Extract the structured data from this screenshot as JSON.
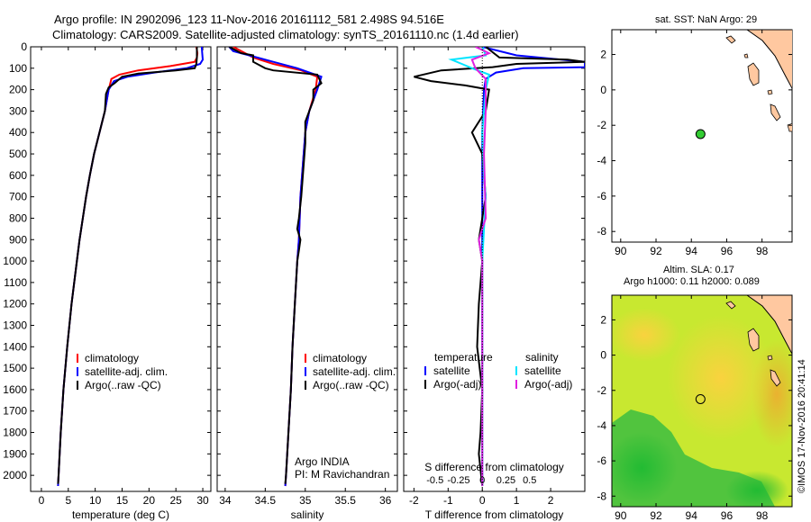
{
  "header": {
    "line1": "Argo profile: IN 2902096_123 11-Nov-2016 20161112_581 2.498S 94.516E",
    "line2": "Climatology: CARS2009. Satellite-adjusted climatology: synTS_20161110.nc (1.4d earlier)"
  },
  "colors": {
    "climatology": "#ff0000",
    "satellite": "#0000ff",
    "argo": "#000000",
    "salinity_satellite": "#00e5ff",
    "salinity_argo": "#e020e0",
    "land": "#ffc8a0",
    "marker": "#33cc33"
  },
  "footer_credit": "©IMOS 17-Nov-2016 20:41:14",
  "chart_data": [
    {
      "type": "line",
      "id": "temperature",
      "xlabel": "temperature (deg C)",
      "ylabel": "",
      "xlim": [
        -2,
        31.5
      ],
      "ylim": [
        2075,
        0
      ],
      "xticks": [
        0,
        5,
        10,
        15,
        20,
        25,
        30
      ],
      "yticks": [
        0,
        100,
        200,
        300,
        400,
        500,
        600,
        700,
        800,
        900,
        1000,
        1100,
        1200,
        1300,
        1400,
        1500,
        1600,
        1700,
        1800,
        1900,
        2000
      ],
      "legend": [
        "climatology",
        "satellite-adj. clim.",
        "Argo(..raw -QC)"
      ],
      "series": [
        {
          "name": "climatology",
          "color": "#ff0000",
          "points": [
            [
              28.8,
              0
            ],
            [
              29,
              30
            ],
            [
              28.9,
              50
            ],
            [
              28.5,
              70
            ],
            [
              24,
              90
            ],
            [
              18,
              110
            ],
            [
              14.5,
              130
            ],
            [
              13,
              150
            ],
            [
              12.5,
              200
            ],
            [
              11.8,
              300
            ],
            [
              10.8,
              400
            ],
            [
              9.8,
              500
            ],
            [
              9,
              600
            ],
            [
              8.3,
              700
            ],
            [
              7.7,
              800
            ],
            [
              7.1,
              900
            ],
            [
              6.6,
              1000
            ],
            [
              5.6,
              1200
            ],
            [
              4.8,
              1400
            ],
            [
              4.1,
              1600
            ],
            [
              3.6,
              1800
            ],
            [
              3.2,
              2000
            ],
            [
              3.1,
              2050
            ]
          ]
        },
        {
          "name": "satellite-adj. clim.",
          "color": "#0000ff",
          "points": [
            [
              29.8,
              0
            ],
            [
              29.9,
              30
            ],
            [
              30,
              60
            ],
            [
              29.5,
              80
            ],
            [
              27,
              100
            ],
            [
              21,
              120
            ],
            [
              16,
              140
            ],
            [
              13.5,
              160
            ],
            [
              12.5,
              200
            ],
            [
              11.8,
              300
            ],
            [
              10.8,
              400
            ],
            [
              9.8,
              500
            ],
            [
              9,
              600
            ],
            [
              8.3,
              700
            ],
            [
              7.7,
              800
            ],
            [
              7.1,
              900
            ],
            [
              6.6,
              1000
            ],
            [
              5.6,
              1200
            ],
            [
              4.8,
              1400
            ],
            [
              4.1,
              1600
            ],
            [
              3.6,
              1800
            ],
            [
              3.2,
              2000
            ],
            [
              3.1,
              2050
            ]
          ]
        },
        {
          "name": "Argo(..raw -QC)",
          "color": "#000000",
          "points": [
            [
              28.9,
              0
            ],
            [
              28.9,
              50
            ],
            [
              28.8,
              80
            ],
            [
              28.5,
              100
            ],
            [
              25,
              110
            ],
            [
              18,
              125
            ],
            [
              15,
              140
            ],
            [
              13.6,
              170
            ],
            [
              12.5,
              190
            ],
            [
              12,
              220
            ],
            [
              11.8,
              300
            ],
            [
              10.8,
              400
            ],
            [
              9.8,
              500
            ],
            [
              9,
              600
            ],
            [
              8.3,
              700
            ],
            [
              7.7,
              800
            ],
            [
              7.1,
              900
            ],
            [
              6.6,
              1000
            ],
            [
              5.6,
              1200
            ],
            [
              4.8,
              1400
            ],
            [
              4.1,
              1600
            ],
            [
              3.6,
              1800
            ],
            [
              3.2,
              2000
            ],
            [
              3.1,
              2040
            ]
          ]
        }
      ]
    },
    {
      "type": "line",
      "id": "salinity",
      "xlabel": "salinity",
      "xlim": [
        33.9,
        36.15
      ],
      "ylim": [
        2075,
        0
      ],
      "xticks": [
        34,
        34.5,
        35,
        35.5,
        36
      ],
      "legend": [
        "climatology",
        "satellite-adj. clim.",
        "Argo(..raw -QC)"
      ],
      "annotation": [
        "Argo INDIA",
        "PI: M Ravichandran"
      ],
      "series": [
        {
          "name": "climatology",
          "color": "#ff0000",
          "points": [
            [
              34.1,
              0
            ],
            [
              34.2,
              20
            ],
            [
              34.35,
              50
            ],
            [
              34.6,
              80
            ],
            [
              34.95,
              110
            ],
            [
              35.15,
              140
            ],
            [
              35.13,
              200
            ],
            [
              35.05,
              300
            ],
            [
              35.0,
              400
            ],
            [
              34.98,
              500
            ],
            [
              34.96,
              600
            ],
            [
              34.94,
              700
            ],
            [
              34.93,
              800
            ],
            [
              34.92,
              900
            ],
            [
              34.9,
              1000
            ],
            [
              34.87,
              1200
            ],
            [
              34.84,
              1400
            ],
            [
              34.82,
              1600
            ],
            [
              34.79,
              1800
            ],
            [
              34.76,
              2000
            ],
            [
              34.75,
              2050
            ]
          ]
        },
        {
          "name": "satellite-adj. clim.",
          "color": "#0000ff",
          "points": [
            [
              34.05,
              0
            ],
            [
              34.1,
              20
            ],
            [
              34.3,
              40
            ],
            [
              34.6,
              70
            ],
            [
              34.9,
              100
            ],
            [
              35.2,
              140
            ],
            [
              35.15,
              200
            ],
            [
              35.05,
              300
            ],
            [
              35.0,
              400
            ],
            [
              34.98,
              500
            ],
            [
              34.96,
              600
            ],
            [
              34.94,
              700
            ],
            [
              34.93,
              800
            ],
            [
              34.92,
              900
            ],
            [
              34.9,
              1000
            ],
            [
              34.87,
              1200
            ],
            [
              34.84,
              1400
            ],
            [
              34.82,
              1600
            ],
            [
              34.79,
              1800
            ],
            [
              34.76,
              2000
            ],
            [
              34.75,
              2050
            ]
          ]
        },
        {
          "name": "Argo(..raw -QC)",
          "color": "#000000",
          "points": [
            [
              34.05,
              0
            ],
            [
              34.2,
              30
            ],
            [
              34.35,
              40
            ],
            [
              34.35,
              70
            ],
            [
              34.5,
              100
            ],
            [
              34.6,
              110
            ],
            [
              35.15,
              130
            ],
            [
              35.2,
              170
            ],
            [
              35.1,
              200
            ],
            [
              35.1,
              250
            ],
            [
              35.0,
              350
            ],
            [
              35.0,
              450
            ],
            [
              34.98,
              550
            ],
            [
              34.95,
              700
            ],
            [
              34.92,
              800
            ],
            [
              34.9,
              850
            ],
            [
              34.94,
              900
            ],
            [
              34.92,
              950
            ],
            [
              34.9,
              1000
            ],
            [
              34.87,
              1200
            ],
            [
              34.84,
              1400
            ],
            [
              34.82,
              1600
            ],
            [
              34.79,
              1800
            ],
            [
              34.76,
              2000
            ],
            [
              34.75,
              2040
            ]
          ]
        }
      ]
    },
    {
      "type": "line",
      "id": "difference",
      "xlabel": "T difference from climatology",
      "xlabel_top": "S difference from climatology",
      "xlim": [
        -2.3,
        3
      ],
      "ylim": [
        2075,
        0
      ],
      "xticks_bottom": [
        -2,
        -1,
        0,
        1,
        2
      ],
      "xticks_top_values": [
        -0.5,
        -0.25,
        0,
        0.25,
        0.5
      ],
      "xticks_top_labels": [
        "-0.5",
        "-0.25",
        "0",
        "0.25",
        "0.5"
      ],
      "legend_left_title": "temperature",
      "legend_right_title": "salinity",
      "legend_left": [
        "satellite",
        "Argo(-adj)"
      ],
      "legend_right": [
        "satellite",
        "Argo(-adj)"
      ],
      "series": [
        {
          "name": "T satellite",
          "color": "#0000ff",
          "points": [
            [
              0,
              0
            ],
            [
              1,
              40
            ],
            [
              3,
              70
            ],
            [
              3,
              95
            ],
            [
              1.2,
              100
            ],
            [
              0.4,
              120
            ],
            [
              0.1,
              150
            ],
            [
              0.05,
              200
            ],
            [
              0,
              400
            ],
            [
              0,
              800
            ],
            [
              0,
              1200
            ],
            [
              0,
              1600
            ],
            [
              0,
              2050
            ]
          ]
        },
        {
          "name": "T Argo(-adj)",
          "color": "#000000",
          "points": [
            [
              0.1,
              0
            ],
            [
              0.5,
              50
            ],
            [
              2.5,
              60
            ],
            [
              3,
              70
            ],
            [
              1,
              80
            ],
            [
              0.3,
              95
            ],
            [
              -1.2,
              110
            ],
            [
              -2,
              140
            ],
            [
              -1.5,
              160
            ],
            [
              -0.5,
              180
            ],
            [
              0.2,
              200
            ],
            [
              0.1,
              300
            ],
            [
              -0.3,
              400
            ],
            [
              0,
              500
            ],
            [
              0.1,
              700
            ],
            [
              -0.1,
              900
            ],
            [
              0,
              1000
            ],
            [
              -0.1,
              1200
            ],
            [
              -0.15,
              1400
            ],
            [
              0,
              1600
            ],
            [
              -0.05,
              1800
            ],
            [
              -0.1,
              1900
            ],
            [
              0,
              2050
            ]
          ]
        },
        {
          "name": "S satellite",
          "color": "#00e5ff",
          "points": [
            [
              0,
              0
            ],
            [
              0.1,
              40
            ],
            [
              -0.9,
              60
            ],
            [
              -0.6,
              80
            ],
            [
              -0.3,
              100
            ],
            [
              0.2,
              130
            ],
            [
              0.1,
              200
            ],
            [
              0,
              400
            ],
            [
              0.05,
              600
            ],
            [
              0.1,
              700
            ],
            [
              0,
              1000
            ],
            [
              0,
              1400
            ],
            [
              0,
              2050
            ]
          ]
        },
        {
          "name": "S Argo(-adj)",
          "color": "#e020e0",
          "points": [
            [
              -0.2,
              0
            ],
            [
              0.2,
              30
            ],
            [
              -0.3,
              60
            ],
            [
              -0.2,
              100
            ],
            [
              0.1,
              150
            ],
            [
              0.1,
              300
            ],
            [
              0.05,
              500
            ],
            [
              0.1,
              800
            ],
            [
              -0.1,
              900
            ],
            [
              0,
              1000
            ],
            [
              0,
              2050
            ]
          ]
        }
      ]
    },
    {
      "type": "scatter",
      "id": "sst-map",
      "title": "sat. SST: NaN Argo: 29",
      "xlim": [
        89.5,
        99.7
      ],
      "ylim": [
        -8.6,
        3.4
      ],
      "xticks": [
        90,
        92,
        94,
        96,
        98
      ],
      "yticks": [
        -8,
        -6,
        -4,
        -2,
        0,
        2
      ],
      "points": [
        {
          "lon": 94.516,
          "lat": -2.498
        }
      ]
    },
    {
      "type": "heatmap",
      "id": "sla-map",
      "title": "Altim. SLA: 0.17",
      "subtitle": "Argo h1000: 0.11 h2000: 0.089",
      "xlim": [
        89.5,
        99.7
      ],
      "ylim": [
        -8.6,
        3.4
      ],
      "xticks": [
        90,
        92,
        94,
        96,
        98
      ],
      "yticks": [
        -8,
        -6,
        -4,
        -2,
        0,
        2
      ],
      "points": [
        {
          "lon": 94.516,
          "lat": -2.498
        }
      ]
    }
  ]
}
